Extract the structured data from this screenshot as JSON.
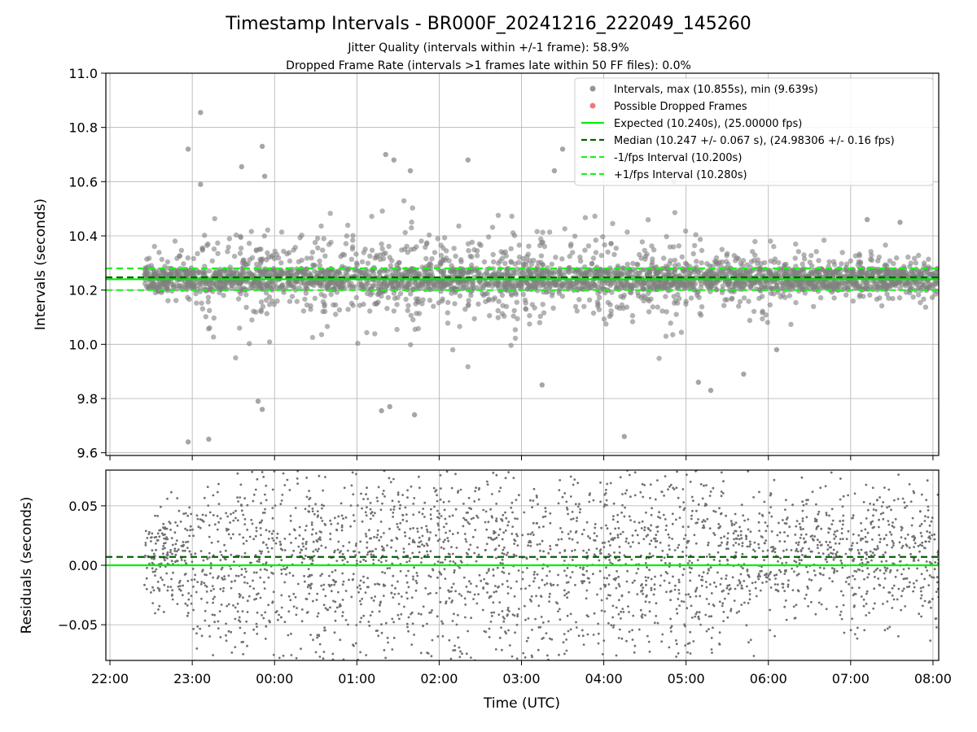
{
  "chart_data": [
    {
      "type": "scatter",
      "title": "Timestamp Intervals - BR000F_20241216_222049_145260",
      "subtitle_lines": [
        "Jitter Quality (intervals within +/-1 frame): 58.9%",
        "Dropped Frame Rate (intervals >1 frames late within 50 FF files): 0.0%"
      ],
      "xlabel": "",
      "ylabel": "Intervals (seconds)",
      "xlim_hours_utc": [
        21.95,
        32.07
      ],
      "ylim": [
        9.59,
        11.0
      ],
      "yticks": [
        9.6,
        9.8,
        10.0,
        10.2,
        10.4,
        10.6,
        10.8,
        11.0
      ],
      "ytick_labels": [
        "9.6",
        "9.8",
        "10.0",
        "10.2",
        "10.4",
        "10.6",
        "10.8",
        "11.0"
      ],
      "grid": true,
      "legend_position": "top-right",
      "data_time_range_utc": [
        "22:25",
        "08:05"
      ],
      "series": [
        {
          "name": "Intervals, max (10.855s), min (9.639s)",
          "kind": "points",
          "color": "#808080",
          "max": 10.855,
          "min": 9.639
        },
        {
          "name": "Possible Dropped Frames",
          "kind": "points",
          "color": "#f06262",
          "count": 0
        },
        {
          "name": "Expected (10.240s), (25.00000 fps)",
          "kind": "hline",
          "y": 10.24,
          "color": "#00ee00",
          "style": "solid"
        },
        {
          "name": "Median (10.247 +/- 0.067 s), (24.98306 +/- 0.16 fps)",
          "kind": "hline",
          "y": 10.247,
          "color": "#006400",
          "style": "dashed"
        },
        {
          "name": "-1/fps Interval (10.200s)",
          "kind": "hline",
          "y": 10.2,
          "color": "#22ee22",
          "style": "dashed"
        },
        {
          "name": "+1/fps Interval (10.280s)",
          "kind": "hline",
          "y": 10.28,
          "color": "#22ee22",
          "style": "dashed"
        }
      ],
      "outlier_points": [
        [
          23.1,
          10.855
        ],
        [
          22.95,
          10.72
        ],
        [
          23.85,
          10.73
        ],
        [
          23.6,
          10.655
        ],
        [
          23.88,
          10.62
        ],
        [
          25.35,
          10.7
        ],
        [
          25.45,
          10.68
        ],
        [
          25.65,
          10.64
        ],
        [
          27.5,
          10.72
        ],
        [
          26.35,
          10.68
        ],
        [
          27.4,
          10.64
        ],
        [
          23.1,
          10.59
        ],
        [
          28.85,
          10.6
        ],
        [
          31.2,
          10.46
        ],
        [
          31.6,
          10.45
        ],
        [
          22.95,
          9.64
        ],
        [
          23.2,
          9.65
        ],
        [
          23.85,
          9.76
        ],
        [
          23.8,
          9.79
        ],
        [
          25.3,
          9.755
        ],
        [
          25.4,
          9.77
        ],
        [
          25.7,
          9.74
        ],
        [
          27.25,
          9.85
        ],
        [
          28.25,
          9.66
        ],
        [
          29.15,
          9.86
        ],
        [
          29.3,
          9.83
        ],
        [
          29.7,
          9.89
        ],
        [
          30.1,
          9.98
        ]
      ]
    },
    {
      "type": "scatter",
      "xlabel": "Time (UTC)",
      "ylabel": "Residuals (seconds)",
      "xlim_hours_utc": [
        21.95,
        32.07
      ],
      "ylim": [
        -0.08,
        0.08
      ],
      "yticks": [
        -0.05,
        0.0,
        0.05
      ],
      "ytick_labels": [
        "−0.05",
        "0.00",
        "0.05"
      ],
      "xticks_hours_utc": [
        22,
        23,
        24,
        25,
        26,
        27,
        28,
        29,
        30,
        31,
        32
      ],
      "xtick_labels": [
        "22:00",
        "23:00",
        "00:00",
        "01:00",
        "02:00",
        "03:00",
        "04:00",
        "05:00",
        "06:00",
        "07:00",
        "08:00"
      ],
      "grid": true,
      "series": [
        {
          "kind": "points",
          "color": "#707070"
        },
        {
          "kind": "hline",
          "y": 0.0,
          "color": "#00ee00",
          "style": "solid"
        },
        {
          "kind": "hline",
          "y": 0.007,
          "color": "#006400",
          "style": "dashed"
        }
      ]
    }
  ]
}
